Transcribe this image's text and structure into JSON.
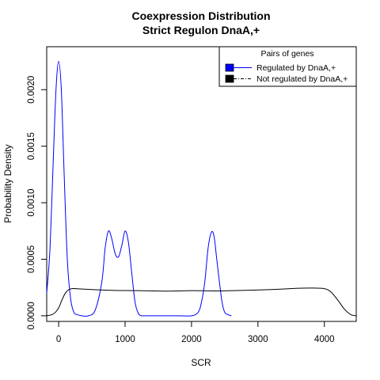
{
  "chart_data": {
    "type": "line",
    "title": "Coexpression Distribution",
    "subtitle": "Strict Regulon DnaA,+",
    "xlabel": "SCR",
    "ylabel": "Probability Density",
    "xlim": [
      -180,
      4480
    ],
    "ylim": [
      -5e-05,
      0.00238
    ],
    "x_ticks": [
      0,
      1000,
      2000,
      3000,
      4000
    ],
    "x_tick_labels": [
      "0",
      "1000",
      "2000",
      "3000",
      "4000"
    ],
    "y_ticks": [
      0.0,
      0.0005,
      0.001,
      0.0015,
      0.002
    ],
    "y_tick_labels": [
      "0.0000",
      "0.0005",
      "0.0010",
      "0.0015",
      "0.0020"
    ],
    "grid": false,
    "legend": {
      "title": "Pairs of genes",
      "placement": "top-right",
      "entries": [
        "Regulated by  DnaA,+",
        "Not regulated by  DnaA,+"
      ]
    },
    "series": [
      {
        "name": "Regulated by  DnaA,+",
        "color": "#0000ff",
        "x": [
          -180,
          -130,
          -80,
          -40,
          0,
          40,
          80,
          130,
          180,
          230,
          280,
          350,
          450,
          550,
          650,
          700,
          750,
          800,
          850,
          900,
          950,
          1000,
          1050,
          1100,
          1150,
          1200,
          1250,
          1300,
          1400,
          1600,
          1800,
          2000,
          2100,
          2150,
          2200,
          2250,
          2300,
          2340,
          2380,
          2420,
          2460,
          2500,
          2550,
          2600
        ],
        "y": [
          0.0002,
          0.0006,
          0.0014,
          0.002,
          0.00225,
          0.002,
          0.0013,
          0.0005,
          0.00015,
          3e-05,
          1e-05,
          0.0,
          0.0,
          5e-05,
          0.0003,
          0.0006,
          0.00075,
          0.00068,
          0.00055,
          0.00052,
          0.00062,
          0.00075,
          0.00065,
          0.00038,
          0.00012,
          2e-05,
          0.0,
          0.0,
          0.0,
          0.0,
          0.0,
          0.0,
          3e-05,
          0.00012,
          0.0003,
          0.0006,
          0.00074,
          0.0007,
          0.0005,
          0.0003,
          0.00012,
          3e-05,
          1e-05,
          0.0
        ]
      },
      {
        "name": "Not regulated by  DnaA,+",
        "color": "#000000",
        "x": [
          -180,
          -100,
          -50,
          0,
          50,
          100,
          150,
          200,
          300,
          500,
          800,
          1200,
          1600,
          2000,
          2400,
          2800,
          3200,
          3600,
          3800,
          4000,
          4100,
          4200,
          4300,
          4400,
          4480
        ],
        "y": [
          0.0,
          1e-05,
          3e-05,
          7e-05,
          0.00014,
          0.0002,
          0.00023,
          0.00024,
          0.000238,
          0.000232,
          0.000225,
          0.000222,
          0.000218,
          0.000222,
          0.00022,
          0.000225,
          0.000232,
          0.000243,
          0.000245,
          0.00024,
          0.00021,
          0.00014,
          6e-05,
          1e-05,
          0.0
        ]
      }
    ]
  }
}
